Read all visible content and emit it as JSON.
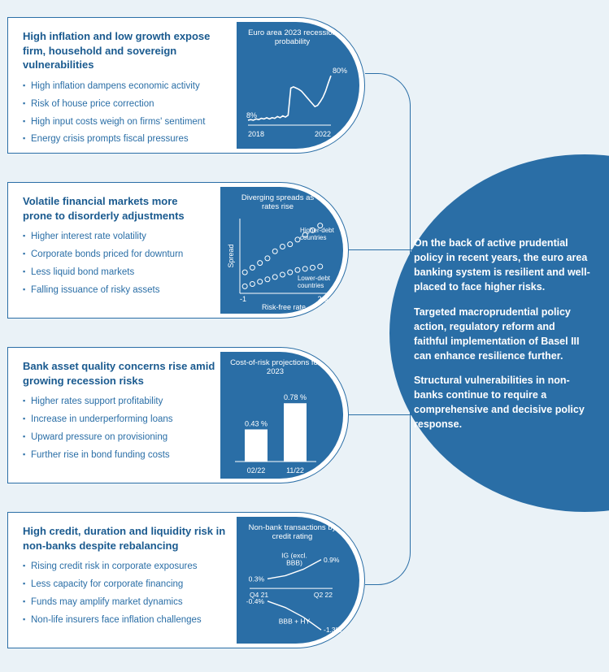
{
  "colors": {
    "primary": "#2a6ea6",
    "dark_text": "#1a5a8f",
    "panel_bg": "#ffffff",
    "page_bg": "#eaf2f7",
    "white": "#ffffff"
  },
  "typography": {
    "title_fontsize_pt": 10,
    "bullet_fontsize_pt": 9,
    "chart_label_fontsize_pt": 7.5,
    "circle_text_fontsize_pt": 10
  },
  "panels": [
    {
      "id": "p1",
      "title": "High inflation and low growth expose firm, household and sovereign vulnerabilities",
      "bullets": [
        "High inflation dampens economic activity",
        "Risk of house price correction",
        "High input costs weigh on firms' sentiment",
        "Energy crisis prompts fiscal pressures"
      ]
    },
    {
      "id": "p2",
      "title": "Volatile financial markets more prone to disorderly adjustments",
      "bullets": [
        "Higher interest rate volatility",
        "Corporate bonds priced for downturn",
        "Less liquid bond markets",
        "Falling issuance of risky assets"
      ]
    },
    {
      "id": "p3",
      "title": "Bank asset quality concerns rise amid growing recession risks",
      "bullets": [
        "Higher rates support profitability",
        "Increase in underperforming loans",
        "Upward pressure on provisioning",
        "Further rise in bond funding costs"
      ]
    },
    {
      "id": "p4",
      "title": "High credit, duration and liquidity risk in non-banks despite rebalancing",
      "bullets": [
        "Rising credit risk in corporate exposures",
        "Less capacity for corporate financing",
        "Funds may amplify market dynamics",
        "Non-life insurers face inflation challenges"
      ]
    }
  ],
  "charts": {
    "c1": {
      "type": "line",
      "title": "Euro area 2023 recession probability",
      "xaxis_labels": [
        "2018",
        "2022"
      ],
      "annotations": {
        "start": "8%",
        "end": "80%"
      },
      "series_y": [
        8,
        9,
        8,
        10,
        9,
        11,
        10,
        12,
        10,
        12,
        11,
        14,
        12,
        15,
        13,
        16,
        60,
        62,
        60,
        58,
        55,
        50,
        45,
        40,
        35,
        30,
        32,
        38,
        45,
        55,
        68,
        80
      ],
      "ylim": [
        0,
        100
      ],
      "line_color": "#ffffff",
      "line_width": 1.6,
      "background_color": "#2a6ea6"
    },
    "c2": {
      "type": "scatter",
      "title": "Diverging spreads as rates rise",
      "xlabel": "Risk-free rate",
      "ylabel": "Spread",
      "xlim": [
        -1,
        2.5
      ],
      "groups": [
        {
          "label": "Higher-debt countries",
          "color": "#ffffff",
          "points": [
            [
              -0.8,
              0.9
            ],
            [
              -0.5,
              1.1
            ],
            [
              -0.2,
              1.3
            ],
            [
              0.1,
              1.5
            ],
            [
              0.4,
              1.8
            ],
            [
              0.7,
              2.0
            ],
            [
              1.0,
              2.1
            ],
            [
              1.3,
              2.3
            ],
            [
              1.6,
              2.5
            ],
            [
              1.9,
              2.7
            ],
            [
              2.2,
              2.9
            ]
          ]
        },
        {
          "label": "Lower-debt countries",
          "color": "#ffffff",
          "points": [
            [
              -0.8,
              0.3
            ],
            [
              -0.5,
              0.4
            ],
            [
              -0.2,
              0.5
            ],
            [
              0.1,
              0.6
            ],
            [
              0.4,
              0.7
            ],
            [
              0.7,
              0.8
            ],
            [
              1.0,
              0.9
            ],
            [
              1.3,
              1.0
            ],
            [
              1.6,
              1.05
            ],
            [
              1.9,
              1.1
            ],
            [
              2.2,
              1.15
            ]
          ]
        }
      ],
      "marker_style": "ring",
      "marker_size": 3,
      "background_color": "#2a6ea6"
    },
    "c3": {
      "type": "bar",
      "title": "Cost-of-risk projections for 2023",
      "categories": [
        "02/22",
        "11/22"
      ],
      "values": [
        0.43,
        0.78
      ],
      "value_labels": [
        "0.43 %",
        "0.78 %"
      ],
      "ylim": [
        0,
        1.0
      ],
      "bar_color": "#ffffff",
      "bar_width": 0.45,
      "background_color": "#2a6ea6"
    },
    "c4": {
      "type": "line",
      "title": "Non-bank transactions by credit rating",
      "xaxis_labels": [
        "Q4 21",
        "Q2 22"
      ],
      "series": [
        {
          "label": "IG (excl. BBB)",
          "start_label": "0.3%",
          "end_label": "0.9%",
          "y": [
            0.3,
            0.4,
            0.6,
            0.9
          ],
          "color": "#ffffff"
        },
        {
          "label": "BBB + HY",
          "start_label": "-0.4%",
          "end_label": "-1.3%",
          "y": [
            -0.4,
            -0.6,
            -0.9,
            -1.3
          ],
          "color": "#ffffff"
        }
      ],
      "ylim": [
        -1.5,
        1.2
      ],
      "background_color": "#2a6ea6"
    }
  },
  "circle_text": {
    "p1": "On the back of active prudential policy in recent years, the euro area banking system is resilient and well-placed to face higher risks.",
    "p2": "Targeted macroprudential policy action, regulatory reform and faithful implementation of Basel III can enhance resilience further.",
    "p3": "Structural vulnerabilities in non-banks continue to require a comprehensive and decisive policy response."
  }
}
